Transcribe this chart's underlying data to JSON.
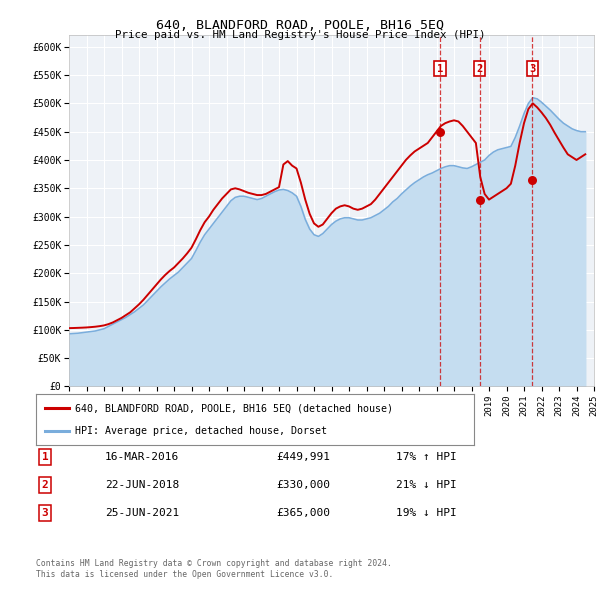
{
  "title": "640, BLANDFORD ROAD, POOLE, BH16 5EQ",
  "subtitle": "Price paid vs. HM Land Registry's House Price Index (HPI)",
  "hpi_label": "HPI: Average price, detached house, Dorset",
  "property_label": "640, BLANDFORD ROAD, POOLE, BH16 5EQ (detached house)",
  "footer_line1": "Contains HM Land Registry data © Crown copyright and database right 2024.",
  "footer_line2": "This data is licensed under the Open Government Licence v3.0.",
  "property_color": "#cc0000",
  "hpi_color": "#7aaddc",
  "hpi_fill_color": "#c5ddf0",
  "transactions": [
    {
      "num": 1,
      "date": "16-MAR-2016",
      "price": "£449,991",
      "pct": "17%",
      "dir": "↑",
      "year": 2016.21,
      "value": 449991
    },
    {
      "num": 2,
      "date": "22-JUN-2018",
      "price": "£330,000",
      "pct": "21%",
      "dir": "↓",
      "year": 2018.47,
      "value": 330000
    },
    {
      "num": 3,
      "date": "25-JUN-2021",
      "price": "£365,000",
      "pct": "19%",
      "dir": "↓",
      "year": 2021.48,
      "value": 365000
    }
  ],
  "xlim": [
    1995,
    2025
  ],
  "ylim": [
    0,
    620000
  ],
  "yticks": [
    0,
    50000,
    100000,
    150000,
    200000,
    250000,
    300000,
    350000,
    400000,
    450000,
    500000,
    550000,
    600000
  ],
  "ytick_labels": [
    "£0",
    "£50K",
    "£100K",
    "£150K",
    "£200K",
    "£250K",
    "£300K",
    "£350K",
    "£400K",
    "£450K",
    "£500K",
    "£550K",
    "£600K"
  ],
  "xticks": [
    1995,
    1996,
    1997,
    1998,
    1999,
    2000,
    2001,
    2002,
    2003,
    2004,
    2005,
    2006,
    2007,
    2008,
    2009,
    2010,
    2011,
    2012,
    2013,
    2014,
    2015,
    2016,
    2017,
    2018,
    2019,
    2020,
    2021,
    2022,
    2023,
    2024,
    2025
  ],
  "hpi_data_x": [
    1995.0,
    1995.25,
    1995.5,
    1995.75,
    1996.0,
    1996.25,
    1996.5,
    1996.75,
    1997.0,
    1997.25,
    1997.5,
    1997.75,
    1998.0,
    1998.25,
    1998.5,
    1998.75,
    1999.0,
    1999.25,
    1999.5,
    1999.75,
    2000.0,
    2000.25,
    2000.5,
    2000.75,
    2001.0,
    2001.25,
    2001.5,
    2001.75,
    2002.0,
    2002.25,
    2002.5,
    2002.75,
    2003.0,
    2003.25,
    2003.5,
    2003.75,
    2004.0,
    2004.25,
    2004.5,
    2004.75,
    2005.0,
    2005.25,
    2005.5,
    2005.75,
    2006.0,
    2006.25,
    2006.5,
    2006.75,
    2007.0,
    2007.25,
    2007.5,
    2007.75,
    2008.0,
    2008.25,
    2008.5,
    2008.75,
    2009.0,
    2009.25,
    2009.5,
    2009.75,
    2010.0,
    2010.25,
    2010.5,
    2010.75,
    2011.0,
    2011.25,
    2011.5,
    2011.75,
    2012.0,
    2012.25,
    2012.5,
    2012.75,
    2013.0,
    2013.25,
    2013.5,
    2013.75,
    2014.0,
    2014.25,
    2014.5,
    2014.75,
    2015.0,
    2015.25,
    2015.5,
    2015.75,
    2016.0,
    2016.25,
    2016.5,
    2016.75,
    2017.0,
    2017.25,
    2017.5,
    2017.75,
    2018.0,
    2018.25,
    2018.5,
    2018.75,
    2019.0,
    2019.25,
    2019.5,
    2019.75,
    2020.0,
    2020.25,
    2020.5,
    2020.75,
    2021.0,
    2021.25,
    2021.5,
    2021.75,
    2022.0,
    2022.25,
    2022.5,
    2022.75,
    2023.0,
    2023.25,
    2023.5,
    2023.75,
    2024.0,
    2024.25,
    2024.5
  ],
  "hpi_data_y": [
    93000,
    93500,
    94000,
    95000,
    96000,
    97000,
    98000,
    100000,
    102000,
    106000,
    110000,
    114000,
    118000,
    122000,
    127000,
    132000,
    138000,
    144000,
    152000,
    160000,
    168000,
    176000,
    183000,
    190000,
    196000,
    202000,
    210000,
    218000,
    226000,
    240000,
    255000,
    268000,
    278000,
    288000,
    298000,
    308000,
    318000,
    328000,
    334000,
    336000,
    336000,
    334000,
    332000,
    330000,
    332000,
    336000,
    340000,
    344000,
    347000,
    348000,
    346000,
    342000,
    336000,
    318000,
    295000,
    278000,
    268000,
    265000,
    270000,
    278000,
    286000,
    292000,
    296000,
    298000,
    298000,
    296000,
    294000,
    294000,
    296000,
    298000,
    302000,
    306000,
    312000,
    318000,
    326000,
    332000,
    340000,
    347000,
    354000,
    360000,
    365000,
    370000,
    374000,
    377000,
    381000,
    385000,
    388000,
    390000,
    390000,
    388000,
    386000,
    385000,
    388000,
    392000,
    396000,
    400000,
    408000,
    414000,
    418000,
    420000,
    422000,
    424000,
    440000,
    460000,
    482000,
    500000,
    510000,
    508000,
    502000,
    495000,
    488000,
    480000,
    472000,
    465000,
    460000,
    455000,
    452000,
    450000,
    450000
  ],
  "property_data_x": [
    1995.0,
    1995.25,
    1995.5,
    1995.75,
    1996.0,
    1996.25,
    1996.5,
    1996.75,
    1997.0,
    1997.25,
    1997.5,
    1997.75,
    1998.0,
    1998.25,
    1998.5,
    1998.75,
    1999.0,
    1999.25,
    1999.5,
    1999.75,
    2000.0,
    2000.25,
    2000.5,
    2000.75,
    2001.0,
    2001.25,
    2001.5,
    2001.75,
    2002.0,
    2002.25,
    2002.5,
    2002.75,
    2003.0,
    2003.25,
    2003.5,
    2003.75,
    2004.0,
    2004.25,
    2004.5,
    2004.75,
    2005.0,
    2005.25,
    2005.5,
    2005.75,
    2006.0,
    2006.25,
    2006.5,
    2006.75,
    2007.0,
    2007.25,
    2007.5,
    2007.75,
    2008.0,
    2008.25,
    2008.5,
    2008.75,
    2009.0,
    2009.25,
    2009.5,
    2009.75,
    2010.0,
    2010.25,
    2010.5,
    2010.75,
    2011.0,
    2011.25,
    2011.5,
    2011.75,
    2012.0,
    2012.25,
    2012.5,
    2012.75,
    2013.0,
    2013.25,
    2013.5,
    2013.75,
    2014.0,
    2014.25,
    2014.5,
    2014.75,
    2015.0,
    2015.25,
    2015.5,
    2015.75,
    2016.0,
    2016.25,
    2016.5,
    2016.75,
    2017.0,
    2017.25,
    2017.5,
    2017.75,
    2018.0,
    2018.25,
    2018.5,
    2018.75,
    2019.0,
    2019.25,
    2019.5,
    2019.75,
    2020.0,
    2020.25,
    2020.5,
    2020.75,
    2021.0,
    2021.25,
    2021.5,
    2021.75,
    2022.0,
    2022.25,
    2022.5,
    2022.75,
    2023.0,
    2023.25,
    2023.5,
    2023.75,
    2024.0,
    2024.25,
    2024.5
  ],
  "property_data_y": [
    103000,
    103200,
    103500,
    103800,
    104200,
    104800,
    105500,
    106500,
    107800,
    110000,
    113000,
    117000,
    121000,
    126000,
    131000,
    138000,
    145000,
    153000,
    162000,
    171000,
    180000,
    189000,
    197000,
    204000,
    210000,
    218000,
    226000,
    235000,
    245000,
    260000,
    276000,
    290000,
    300000,
    312000,
    322000,
    332000,
    340000,
    348000,
    350000,
    348000,
    345000,
    342000,
    340000,
    338000,
    338000,
    340000,
    344000,
    348000,
    352000,
    392000,
    398000,
    390000,
    385000,
    360000,
    330000,
    305000,
    288000,
    282000,
    286000,
    296000,
    306000,
    314000,
    318000,
    320000,
    318000,
    314000,
    312000,
    314000,
    318000,
    322000,
    330000,
    340000,
    350000,
    360000,
    370000,
    380000,
    390000,
    400000,
    408000,
    415000,
    420000,
    425000,
    430000,
    440000,
    449991,
    460000,
    465000,
    468000,
    470000,
    468000,
    460000,
    450000,
    440000,
    430000,
    370000,
    340000,
    330000,
    335000,
    340000,
    345000,
    350000,
    358000,
    390000,
    430000,
    465000,
    490000,
    500000,
    493000,
    484000,
    474000,
    462000,
    448000,
    435000,
    422000,
    410000,
    405000,
    400000,
    405000,
    410000
  ]
}
